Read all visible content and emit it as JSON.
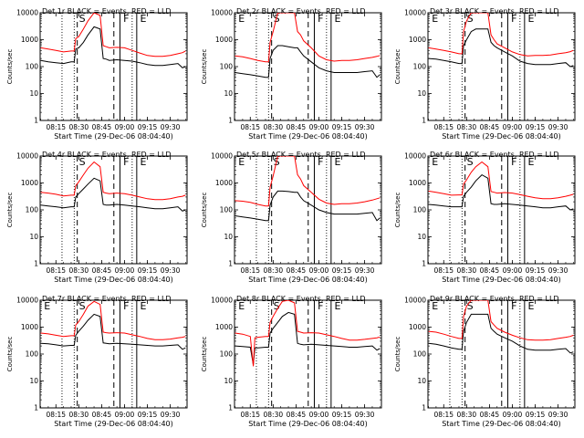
{
  "figure": {
    "legend_text": "BLACK = Events, RED = LLD",
    "xlabel": "Start Time (29-Dec-06 08:04:40)",
    "ylabel": "Counts/sec",
    "colors": {
      "events": "#000000",
      "lld": "#ff0000",
      "axes": "#000000"
    }
  },
  "chart_data": [
    {
      "type": "line",
      "title": "Det 1r BLACK = Events, RED = LLD",
      "xlabel": "Start Time (29-Dec-06 08:04:40)",
      "ylabel": "Counts/sec",
      "xlim": [
        "08:04:40",
        "09:41:00"
      ],
      "ylim": [
        1,
        10000
      ],
      "yscale": "log",
      "xticks": [
        "08:15",
        "08:30",
        "08:45",
        "09:00",
        "09:15",
        "09:30"
      ],
      "yticks": [
        "1",
        "10",
        "100",
        "1000",
        "10000"
      ],
      "region_labels": [
        "S",
        "F",
        "E"
      ],
      "x": [
        "08:05",
        "08:10",
        "08:15",
        "08:20",
        "08:25",
        "08:27",
        "08:28",
        "08:30",
        "08:33",
        "08:36",
        "08:40",
        "08:44",
        "08:46",
        "08:48",
        "08:50",
        "08:55",
        "09:00",
        "09:05",
        "09:10",
        "09:15",
        "09:20",
        "09:25",
        "09:30",
        "09:35",
        "09:38",
        "09:40"
      ],
      "series": [
        {
          "name": "Events",
          "values": [
            170,
            150,
            140,
            130,
            150,
            150,
            450,
            500,
            800,
            1500,
            3000,
            2500,
            200,
            190,
            170,
            180,
            170,
            160,
            140,
            120,
            110,
            110,
            120,
            130,
            90,
            100
          ]
        },
        {
          "name": "LLD",
          "values": [
            500,
            450,
            400,
            350,
            380,
            380,
            1100,
            1300,
            2500,
            5000,
            10000,
            8000,
            600,
            550,
            500,
            520,
            500,
            400,
            320,
            260,
            240,
            240,
            260,
            300,
            330,
            380
          ]
        }
      ]
    },
    {
      "type": "line",
      "title": "Det 2r BLACK = Events, RED = LLD",
      "xlabel": "Start Time (29-Dec-06 08:04:40)",
      "ylabel": "Counts/sec",
      "xlim": [
        "08:04:40",
        "09:41:00"
      ],
      "ylim": [
        1,
        10000
      ],
      "yscale": "log",
      "xticks": [
        "08:15",
        "08:30",
        "08:45",
        "09:00",
        "09:15",
        "09:30"
      ],
      "yticks": [
        "1",
        "10",
        "100",
        "1000",
        "10000"
      ],
      "region_labels": [
        "E",
        "S",
        "F",
        "E"
      ],
      "x": [
        "08:05",
        "08:10",
        "08:15",
        "08:20",
        "08:25",
        "08:27",
        "08:28",
        "08:30",
        "08:33",
        "08:36",
        "08:40",
        "08:44",
        "08:46",
        "08:48",
        "08:50",
        "08:55",
        "09:00",
        "09:05",
        "09:10",
        "09:15",
        "09:20",
        "09:25",
        "09:30",
        "09:35",
        "09:38",
        "09:40"
      ],
      "series": [
        {
          "name": "Events",
          "values": [
            60,
            55,
            50,
            45,
            40,
            40,
            200,
            400,
            600,
            600,
            550,
            500,
            500,
            350,
            250,
            150,
            90,
            70,
            60,
            60,
            60,
            60,
            65,
            70,
            40,
            50
          ]
        },
        {
          "name": "LLD",
          "values": [
            250,
            230,
            200,
            170,
            150,
            150,
            800,
            2000,
            10000,
            10000,
            10000,
            10000,
            2000,
            1500,
            900,
            500,
            250,
            180,
            160,
            170,
            170,
            180,
            200,
            220,
            240,
            260
          ]
        }
      ]
    },
    {
      "type": "line",
      "title": "Det 3r BLACK = Events, RED = LLD",
      "xlabel": "Start Time (29-Dec-06 08:04:40)",
      "ylabel": "Counts/sec",
      "xlim": [
        "08:04:40",
        "09:41:00"
      ],
      "ylim": [
        1,
        10000
      ],
      "yscale": "log",
      "xticks": [
        "08:15",
        "08:30",
        "08:45",
        "09:00",
        "09:15",
        "09:30"
      ],
      "yticks": [
        "1",
        "10",
        "100",
        "1000",
        "10000"
      ],
      "region_labels": [
        "E",
        "S",
        "F",
        "E"
      ],
      "x": [
        "08:05",
        "08:10",
        "08:15",
        "08:20",
        "08:25",
        "08:27",
        "08:28",
        "08:30",
        "08:33",
        "08:36",
        "08:40",
        "08:44",
        "08:46",
        "08:48",
        "08:50",
        "08:55",
        "09:00",
        "09:05",
        "09:10",
        "09:15",
        "09:20",
        "09:25",
        "09:30",
        "09:35",
        "09:38",
        "09:40"
      ],
      "series": [
        {
          "name": "Events",
          "values": [
            200,
            190,
            170,
            150,
            130,
            130,
            600,
            1000,
            2000,
            2500,
            2500,
            2500,
            800,
            600,
            500,
            350,
            250,
            160,
            130,
            120,
            120,
            120,
            130,
            140,
            100,
            110
          ]
        },
        {
          "name": "LLD",
          "values": [
            500,
            450,
            400,
            350,
            300,
            300,
            2000,
            5000,
            10000,
            10000,
            10000,
            10000,
            1500,
            1000,
            700,
            500,
            350,
            280,
            250,
            260,
            260,
            270,
            300,
            330,
            360,
            400
          ]
        }
      ]
    },
    {
      "type": "line",
      "title": "Det 4r BLACK = Events, RED = LLD",
      "xlabel": "Start Time (29-Dec-06 08:04:40)",
      "ylabel": "Counts/sec",
      "xlim": [
        "08:04:40",
        "09:41:00"
      ],
      "ylim": [
        1,
        10000
      ],
      "yscale": "log",
      "xticks": [
        "08:15",
        "08:30",
        "08:45",
        "09:00",
        "09:15",
        "09:30"
      ],
      "yticks": [
        "1",
        "10",
        "100",
        "1000",
        "10000"
      ],
      "region_labels": [
        "S",
        "F",
        "E"
      ],
      "x": [
        "08:05",
        "08:10",
        "08:15",
        "08:20",
        "08:25",
        "08:27",
        "08:28",
        "08:30",
        "08:33",
        "08:36",
        "08:40",
        "08:44",
        "08:46",
        "08:48",
        "08:50",
        "08:55",
        "09:00",
        "09:05",
        "09:10",
        "09:15",
        "09:20",
        "09:25",
        "09:30",
        "09:35",
        "09:38",
        "09:40"
      ],
      "series": [
        {
          "name": "Events",
          "values": [
            150,
            140,
            130,
            120,
            130,
            130,
            300,
            400,
            600,
            900,
            1500,
            1200,
            160,
            150,
            150,
            160,
            150,
            140,
            130,
            120,
            110,
            110,
            120,
            130,
            90,
            100
          ]
        },
        {
          "name": "LLD",
          "values": [
            450,
            420,
            380,
            330,
            350,
            350,
            800,
            1100,
            2000,
            3500,
            6000,
            4000,
            450,
            420,
            400,
            420,
            400,
            350,
            300,
            260,
            240,
            240,
            260,
            300,
            320,
            350
          ]
        }
      ]
    },
    {
      "type": "line",
      "title": "Det 5r BLACK = Events, RED = LLD",
      "xlabel": "Start Time (29-Dec-06 08:04:40)",
      "ylabel": "Counts/sec",
      "xlim": [
        "08:04:40",
        "09:41:00"
      ],
      "ylim": [
        1,
        10000
      ],
      "yscale": "log",
      "xticks": [
        "08:15",
        "08:30",
        "08:45",
        "09:00",
        "09:15",
        "09:30"
      ],
      "yticks": [
        "1",
        "10",
        "100",
        "1000",
        "10000"
      ],
      "region_labels": [
        "E",
        "S",
        "F",
        "E"
      ],
      "x": [
        "08:05",
        "08:10",
        "08:15",
        "08:20",
        "08:25",
        "08:27",
        "08:28",
        "08:30",
        "08:33",
        "08:36",
        "08:40",
        "08:44",
        "08:46",
        "08:48",
        "08:50",
        "08:55",
        "09:00",
        "09:05",
        "09:10",
        "09:15",
        "09:20",
        "09:25",
        "09:30",
        "09:35",
        "09:38",
        "09:40"
      ],
      "series": [
        {
          "name": "Events",
          "values": [
            60,
            55,
            50,
            45,
            40,
            40,
            150,
            300,
            500,
            500,
            480,
            450,
            450,
            300,
            220,
            150,
            100,
            80,
            70,
            70,
            70,
            70,
            75,
            80,
            40,
            50
          ]
        },
        {
          "name": "LLD",
          "values": [
            220,
            210,
            190,
            160,
            140,
            140,
            700,
            1800,
            10000,
            10000,
            10000,
            10000,
            2000,
            1400,
            800,
            450,
            250,
            180,
            160,
            170,
            170,
            180,
            200,
            230,
            260,
            280
          ]
        }
      ]
    },
    {
      "type": "line",
      "title": "Det 6r BLACK = Events, RED = LLD",
      "xlabel": "Start Time (29-Dec-06 08:04:40)",
      "ylabel": "Counts/sec",
      "xlim": [
        "08:04:40",
        "09:41:00"
      ],
      "ylim": [
        1,
        10000
      ],
      "yscale": "log",
      "xticks": [
        "08:15",
        "08:30",
        "08:45",
        "09:00",
        "09:15",
        "09:30"
      ],
      "yticks": [
        "1",
        "10",
        "100",
        "1000",
        "10000"
      ],
      "region_labels": [
        "E",
        "S",
        "F",
        "E"
      ],
      "x": [
        "08:05",
        "08:10",
        "08:15",
        "08:20",
        "08:25",
        "08:27",
        "08:28",
        "08:30",
        "08:33",
        "08:36",
        "08:40",
        "08:44",
        "08:46",
        "08:48",
        "08:50",
        "08:55",
        "09:00",
        "09:05",
        "09:10",
        "09:15",
        "09:20",
        "09:25",
        "09:30",
        "09:35",
        "09:38",
        "09:40"
      ],
      "series": [
        {
          "name": "Events",
          "values": [
            160,
            150,
            140,
            130,
            130,
            130,
            320,
            450,
            700,
            1200,
            2000,
            1500,
            170,
            160,
            160,
            170,
            160,
            150,
            140,
            130,
            120,
            120,
            130,
            140,
            100,
            110
          ]
        },
        {
          "name": "LLD",
          "values": [
            500,
            450,
            400,
            350,
            360,
            360,
            900,
            1300,
            2500,
            4000,
            6000,
            4000,
            480,
            450,
            420,
            440,
            420,
            370,
            320,
            280,
            260,
            260,
            280,
            320,
            350,
            380
          ]
        }
      ]
    },
    {
      "type": "line",
      "title": "Det 7r BLACK = Events, RED = LLD",
      "xlabel": "Start Time (29-Dec-06 08:04:40)",
      "ylabel": "Counts/sec",
      "xlim": [
        "08:04:40",
        "09:41:00"
      ],
      "ylim": [
        1,
        10000
      ],
      "yscale": "log",
      "xticks": [
        "08:15",
        "08:30",
        "08:45",
        "09:00",
        "09:15",
        "09:30"
      ],
      "yticks": [
        "1",
        "10",
        "100",
        "1000",
        "10000"
      ],
      "region_labels": [
        "E",
        "S",
        "F",
        "E"
      ],
      "x": [
        "08:05",
        "08:10",
        "08:15",
        "08:20",
        "08:25",
        "08:27",
        "08:28",
        "08:30",
        "08:33",
        "08:36",
        "08:40",
        "08:44",
        "08:46",
        "08:48",
        "08:50",
        "08:55",
        "09:00",
        "09:05",
        "09:10",
        "09:15",
        "09:20",
        "09:25",
        "09:30",
        "09:35",
        "09:38",
        "09:40"
      ],
      "series": [
        {
          "name": "Events",
          "values": [
            250,
            240,
            220,
            200,
            210,
            210,
            500,
            700,
            1100,
            1800,
            3000,
            2500,
            260,
            250,
            240,
            250,
            240,
            230,
            220,
            210,
            200,
            200,
            210,
            220,
            150,
            170
          ]
        },
        {
          "name": "LLD",
          "values": [
            600,
            560,
            500,
            450,
            480,
            480,
            1200,
            1600,
            3000,
            6000,
            9000,
            7000,
            650,
            620,
            600,
            620,
            600,
            520,
            450,
            380,
            340,
            340,
            360,
            400,
            420,
            450
          ]
        }
      ]
    },
    {
      "type": "line",
      "title": "Det 8r BLACK = Events, RED = LLD",
      "xlabel": "Start Time (29-Dec-06 08:04:40)",
      "ylabel": "Counts/sec",
      "xlim": [
        "08:04:40",
        "09:41:00"
      ],
      "ylim": [
        1,
        10000
      ],
      "yscale": "log",
      "xticks": [
        "08:15",
        "08:30",
        "08:45",
        "09:00",
        "09:15",
        "09:30"
      ],
      "yticks": [
        "1",
        "10",
        "100",
        "1000",
        "10000"
      ],
      "region_labels": [
        "E",
        "S",
        "F",
        "E"
      ],
      "x": [
        "08:05",
        "08:10",
        "08:15",
        "08:17",
        "08:18",
        "08:20",
        "08:25",
        "08:27",
        "08:28",
        "08:30",
        "08:33",
        "08:36",
        "08:40",
        "08:44",
        "08:46",
        "08:48",
        "08:50",
        "08:55",
        "09:00",
        "09:05",
        "09:10",
        "09:15",
        "09:20",
        "09:25",
        "09:30",
        "09:35",
        "09:38",
        "09:40"
      ],
      "series": [
        {
          "name": "Events",
          "values": [
            200,
            190,
            180,
            40,
            170,
            170,
            180,
            180,
            600,
            900,
            1500,
            2500,
            3500,
            3000,
            250,
            230,
            220,
            230,
            220,
            210,
            200,
            190,
            180,
            180,
            190,
            200,
            140,
            160
          ]
        },
        {
          "name": "LLD",
          "values": [
            600,
            550,
            450,
            35,
            400,
            420,
            450,
            450,
            1500,
            2500,
            5000,
            9000,
            10000,
            8000,
            700,
            650,
            600,
            620,
            600,
            520,
            450,
            380,
            330,
            330,
            350,
            380,
            400,
            430
          ]
        }
      ]
    },
    {
      "type": "line",
      "title": "Det 9r BLACK = Events, RED = LLD",
      "xlabel": "Start Time (29-Dec-06 08:04:40)",
      "ylabel": "Counts/sec",
      "xlim": [
        "08:04:40",
        "09:41:00"
      ],
      "ylim": [
        1,
        10000
      ],
      "yscale": "log",
      "xticks": [
        "08:15",
        "08:30",
        "08:45",
        "09:00",
        "09:15",
        "09:30"
      ],
      "yticks": [
        "1",
        "10",
        "100",
        "1000",
        "10000"
      ],
      "region_labels": [
        "E",
        "S",
        "F",
        "E"
      ],
      "x": [
        "08:05",
        "08:10",
        "08:15",
        "08:20",
        "08:25",
        "08:27",
        "08:28",
        "08:30",
        "08:33",
        "08:36",
        "08:40",
        "08:44",
        "08:46",
        "08:48",
        "08:50",
        "08:55",
        "09:00",
        "09:05",
        "09:10",
        "09:15",
        "09:20",
        "09:25",
        "09:30",
        "09:35",
        "09:38",
        "09:40"
      ],
      "series": [
        {
          "name": "Events",
          "values": [
            250,
            230,
            200,
            170,
            150,
            150,
            700,
            1500,
            3000,
            3000,
            3000,
            3000,
            900,
            700,
            550,
            400,
            300,
            200,
            150,
            140,
            140,
            140,
            150,
            160,
            110,
            120
          ]
        },
        {
          "name": "LLD",
          "values": [
            700,
            650,
            550,
            450,
            380,
            380,
            2500,
            6000,
            10000,
            10000,
            10000,
            10000,
            1600,
            1200,
            900,
            650,
            500,
            400,
            340,
            330,
            330,
            340,
            380,
            420,
            450,
            500
          ]
        }
      ]
    }
  ]
}
